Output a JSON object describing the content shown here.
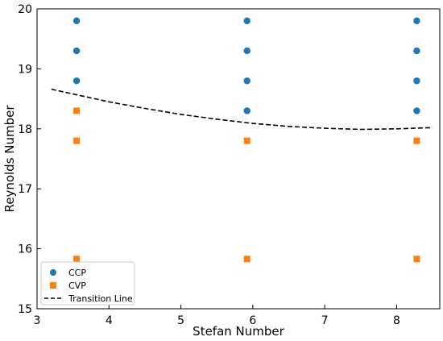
{
  "chart_data": {
    "type": "scatter",
    "title": "",
    "xlabel": "Stefan Number",
    "ylabel": "Reynolds Number",
    "xlim": [
      3,
      8.6
    ],
    "ylim": [
      15,
      20
    ],
    "xticks": [
      3,
      4,
      5,
      6,
      7,
      8
    ],
    "yticks": [
      15,
      16,
      17,
      18,
      19,
      20
    ],
    "grid": false,
    "legend_position": "bottom-left",
    "series": [
      {
        "name": "CCP",
        "marker": "circle",
        "color": "#1f77b4",
        "points": [
          [
            3.55,
            19.8
          ],
          [
            3.55,
            19.3
          ],
          [
            3.55,
            18.8
          ],
          [
            5.92,
            19.8
          ],
          [
            5.92,
            19.3
          ],
          [
            5.92,
            18.8
          ],
          [
            5.92,
            18.3
          ],
          [
            8.28,
            19.8
          ],
          [
            8.28,
            19.3
          ],
          [
            8.28,
            18.8
          ],
          [
            8.28,
            18.3
          ]
        ]
      },
      {
        "name": "CVP",
        "marker": "square",
        "color": "#ff7f0e",
        "points": [
          [
            3.55,
            18.3
          ],
          [
            3.55,
            17.8
          ],
          [
            3.55,
            15.83
          ],
          [
            5.92,
            17.8
          ],
          [
            5.92,
            15.83
          ],
          [
            8.28,
            17.8
          ],
          [
            8.28,
            15.83
          ]
        ]
      },
      {
        "name": "Transition Line",
        "style": "dashed-line",
        "color": "#000000",
        "points": [
          [
            3.2,
            18.66
          ],
          [
            3.5,
            18.58
          ],
          [
            4.0,
            18.45
          ],
          [
            4.5,
            18.34
          ],
          [
            5.0,
            18.24
          ],
          [
            5.5,
            18.16
          ],
          [
            6.0,
            18.09
          ],
          [
            6.5,
            18.04
          ],
          [
            7.0,
            18.01
          ],
          [
            7.5,
            17.99
          ],
          [
            8.0,
            18.0
          ],
          [
            8.5,
            18.02
          ]
        ]
      }
    ]
  }
}
